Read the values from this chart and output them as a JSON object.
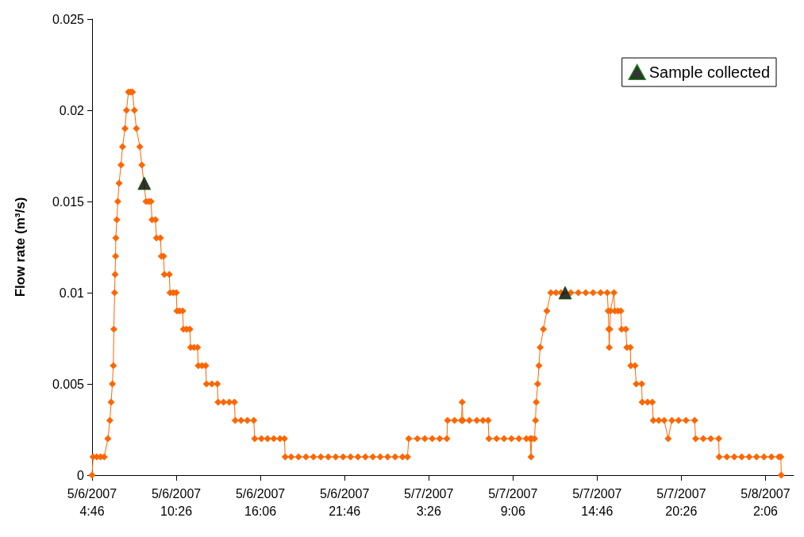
{
  "chart_data": {
    "type": "line",
    "ylabel": "Flow rate (m³/s)",
    "grid": false,
    "legend": "top right",
    "xlim": [
      "2007-05-06T04:46",
      "2007-05-08T04:00"
    ],
    "xticks": [
      {
        "value": "2007-05-06T04:46",
        "label": "5/6/2007\n4:46"
      },
      {
        "value": "2007-05-06T10:26",
        "label": "5/6/2007\n10:26"
      },
      {
        "value": "2007-05-06T16:06",
        "label": "5/6/2007\n16:06"
      },
      {
        "value": "2007-05-06T21:46",
        "label": "5/6/2007\n21:46"
      },
      {
        "value": "2007-05-07T03:26",
        "label": "5/7/2007\n3:26"
      },
      {
        "value": "2007-05-07T09:06",
        "label": "5/7/2007\n9:06"
      },
      {
        "value": "2007-05-07T14:46",
        "label": "5/7/2007\n14:46"
      },
      {
        "value": "2007-05-07T20:26",
        "label": "5/7/2007\n20:26"
      },
      {
        "value": "2007-05-08T02:06",
        "label": "5/8/2007\n2:06"
      }
    ],
    "ylim": [
      0,
      0.025
    ],
    "yticks": [
      0,
      0.005,
      0.01,
      0.015,
      0.02,
      0.025
    ],
    "series": [
      {
        "type": "line",
        "color": "#ff6600",
        "marker": "diamond",
        "line_style": "solid",
        "x": [
          "2007-05-06T04:46",
          "2007-05-06T04:50",
          "2007-05-06T05:05",
          "2007-05-06T05:20",
          "2007-05-06T05:35",
          "2007-05-06T05:50",
          "2007-05-06T05:58",
          "2007-05-06T06:03",
          "2007-05-06T06:08",
          "2007-05-06T06:12",
          "2007-05-06T06:14",
          "2007-05-06T06:17",
          "2007-05-06T06:19",
          "2007-05-06T06:21",
          "2007-05-06T06:22",
          "2007-05-06T06:26",
          "2007-05-06T06:30",
          "2007-05-06T06:35",
          "2007-05-06T06:43",
          "2007-05-06T06:49",
          "2007-05-06T06:59",
          "2007-05-06T07:05",
          "2007-05-06T07:13",
          "2007-05-06T07:21",
          "2007-05-06T07:29",
          "2007-05-06T07:37",
          "2007-05-06T07:45",
          "2007-05-06T07:59",
          "2007-05-06T08:07",
          "2007-05-06T08:24",
          "2007-05-06T08:35",
          "2007-05-06T08:44",
          "2007-05-06T08:48",
          "2007-05-06T09:02",
          "2007-05-06T09:06",
          "2007-05-06T09:22",
          "2007-05-06T09:26",
          "2007-05-06T09:35",
          "2007-05-06T09:38",
          "2007-05-06T09:58",
          "2007-05-06T10:01",
          "2007-05-06T10:14",
          "2007-05-06T10:26",
          "2007-05-06T10:29",
          "2007-05-06T10:40",
          "2007-05-06T10:52",
          "2007-05-06T10:55",
          "2007-05-06T11:08",
          "2007-05-06T11:21",
          "2007-05-06T11:24",
          "2007-05-06T11:38",
          "2007-05-06T11:52",
          "2007-05-06T11:55",
          "2007-05-06T12:10",
          "2007-05-06T12:25",
          "2007-05-06T12:28",
          "2007-05-06T12:50",
          "2007-05-06T13:12",
          "2007-05-06T13:15",
          "2007-05-06T13:37",
          "2007-05-06T14:00",
          "2007-05-06T14:21",
          "2007-05-06T14:24",
          "2007-05-06T14:48",
          "2007-05-06T15:13",
          "2007-05-06T15:39",
          "2007-05-06T15:43",
          "2007-05-06T16:10",
          "2007-05-06T16:35",
          "2007-05-06T17:00",
          "2007-05-06T17:25",
          "2007-05-06T17:43",
          "2007-05-06T17:46",
          "2007-05-06T18:10",
          "2007-05-06T18:40",
          "2007-05-06T19:10",
          "2007-05-06T19:40",
          "2007-05-06T20:10",
          "2007-05-06T20:40",
          "2007-05-06T21:10",
          "2007-05-06T21:40",
          "2007-05-06T22:10",
          "2007-05-06T22:40",
          "2007-05-06T23:10",
          "2007-05-06T23:40",
          "2007-05-07T00:10",
          "2007-05-07T00:40",
          "2007-05-07T01:10",
          "2007-05-07T01:40",
          "2007-05-07T02:00",
          "2007-05-07T02:05",
          "2007-05-07T02:40",
          "2007-05-07T03:10",
          "2007-05-07T03:40",
          "2007-05-07T04:10",
          "2007-05-07T04:39",
          "2007-05-07T04:42",
          "2007-05-07T05:10",
          "2007-05-07T05:38",
          "2007-05-07T05:41",
          "2007-05-07T05:44",
          "2007-05-07T06:10",
          "2007-05-07T06:40",
          "2007-05-07T07:05",
          "2007-05-07T07:26",
          "2007-05-07T07:29",
          "2007-05-07T08:00",
          "2007-05-07T08:30",
          "2007-05-07T09:00",
          "2007-05-07T09:30",
          "2007-05-07T10:00",
          "2007-05-07T10:16",
          "2007-05-07T10:19",
          "2007-05-07T10:22",
          "2007-05-07T10:33",
          "2007-05-07T10:37",
          "2007-05-07T10:40",
          "2007-05-07T10:46",
          "2007-05-07T10:51",
          "2007-05-07T10:56",
          "2007-05-07T11:09",
          "2007-05-07T11:23",
          "2007-05-07T11:39",
          "2007-05-07T12:00",
          "2007-05-07T12:20",
          "2007-05-07T13:00",
          "2007-05-07T13:30",
          "2007-05-07T14:00",
          "2007-05-07T14:30",
          "2007-05-07T15:00",
          "2007-05-07T15:27",
          "2007-05-07T15:31",
          "2007-05-07T15:33",
          "2007-05-07T15:35",
          "2007-05-07T15:37",
          "2007-05-07T15:40",
          "2007-05-07T15:54",
          "2007-05-07T15:57",
          "2007-05-07T16:10",
          "2007-05-07T16:22",
          "2007-05-07T16:25",
          "2007-05-07T16:42",
          "2007-05-07T16:46",
          "2007-05-07T17:00",
          "2007-05-07T17:02",
          "2007-05-07T17:19",
          "2007-05-07T17:24",
          "2007-05-07T17:46",
          "2007-05-07T17:48",
          "2007-05-07T18:10",
          "2007-05-07T18:29",
          "2007-05-07T18:33",
          "2007-05-07T18:55",
          "2007-05-07T19:17",
          "2007-05-07T19:33",
          "2007-05-07T19:48",
          "2007-05-07T20:15",
          "2007-05-07T20:45",
          "2007-05-07T21:20",
          "2007-05-07T21:24",
          "2007-05-07T21:55",
          "2007-05-07T22:25",
          "2007-05-07T22:57",
          "2007-05-07T22:59",
          "2007-05-07T23:30",
          "2007-05-08T00:00",
          "2007-05-08T00:30",
          "2007-05-08T01:00",
          "2007-05-08T01:30",
          "2007-05-08T02:00",
          "2007-05-08T02:30",
          "2007-05-08T03:00",
          "2007-05-08T03:08",
          "2007-05-08T03:10"
        ],
        "values": [
          0,
          0.001,
          0.001,
          0.001,
          0.001,
          0.002,
          0.003,
          0.004,
          0.005,
          0.006,
          0.008,
          0.01,
          0.011,
          0.012,
          0.013,
          0.014,
          0.015,
          0.016,
          0.017,
          0.018,
          0.019,
          0.02,
          0.021,
          0.021,
          0.021,
          0.02,
          0.019,
          0.018,
          0.017,
          0.015,
          0.015,
          0.015,
          0.014,
          0.014,
          0.013,
          0.013,
          0.012,
          0.012,
          0.011,
          0.011,
          0.01,
          0.01,
          0.01,
          0.009,
          0.009,
          0.009,
          0.008,
          0.008,
          0.008,
          0.007,
          0.007,
          0.007,
          0.006,
          0.006,
          0.006,
          0.005,
          0.005,
          0.005,
          0.004,
          0.004,
          0.004,
          0.004,
          0.003,
          0.003,
          0.003,
          0.003,
          0.002,
          0.002,
          0.002,
          0.002,
          0.002,
          0.002,
          0.001,
          0.001,
          0.001,
          0.001,
          0.001,
          0.001,
          0.001,
          0.001,
          0.001,
          0.001,
          0.001,
          0.001,
          0.001,
          0.001,
          0.001,
          0.001,
          0.001,
          0.001,
          0.002,
          0.002,
          0.002,
          0.002,
          0.002,
          0.002,
          0.003,
          0.003,
          0.003,
          0.004,
          0.003,
          0.003,
          0.003,
          0.003,
          0.003,
          0.002,
          0.002,
          0.002,
          0.002,
          0.002,
          0.002,
          0.002,
          0.001,
          0.002,
          0.002,
          0.003,
          0.004,
          0.005,
          0.006,
          0.007,
          0.008,
          0.009,
          0.01,
          0.01,
          0.01,
          0.01,
          0.01,
          0.01,
          0.01,
          0.01,
          0.01,
          0.009,
          0.008,
          0.007,
          0.008,
          0.009,
          0.01,
          0.009,
          0.009,
          0.009,
          0.008,
          0.008,
          0.007,
          0.007,
          0.006,
          0.006,
          0.005,
          0.005,
          0.004,
          0.004,
          0.004,
          0.003,
          0.003,
          0.003,
          0.002,
          0.003,
          0.003,
          0.003,
          0.003,
          0.002,
          0.002,
          0.002,
          0.002,
          0.001,
          0.001,
          0.001,
          0.001,
          0.001,
          0.001,
          0.001,
          0.001,
          0.001,
          0.001,
          0
        ]
      },
      {
        "type": "scatter",
        "name": "Sample collected",
        "color": "#000000",
        "marker": "triangle",
        "x": [
          "2007-05-06T08:17",
          "2007-05-07T12:37"
        ],
        "values": [
          0.016,
          0.01
        ]
      }
    ]
  }
}
